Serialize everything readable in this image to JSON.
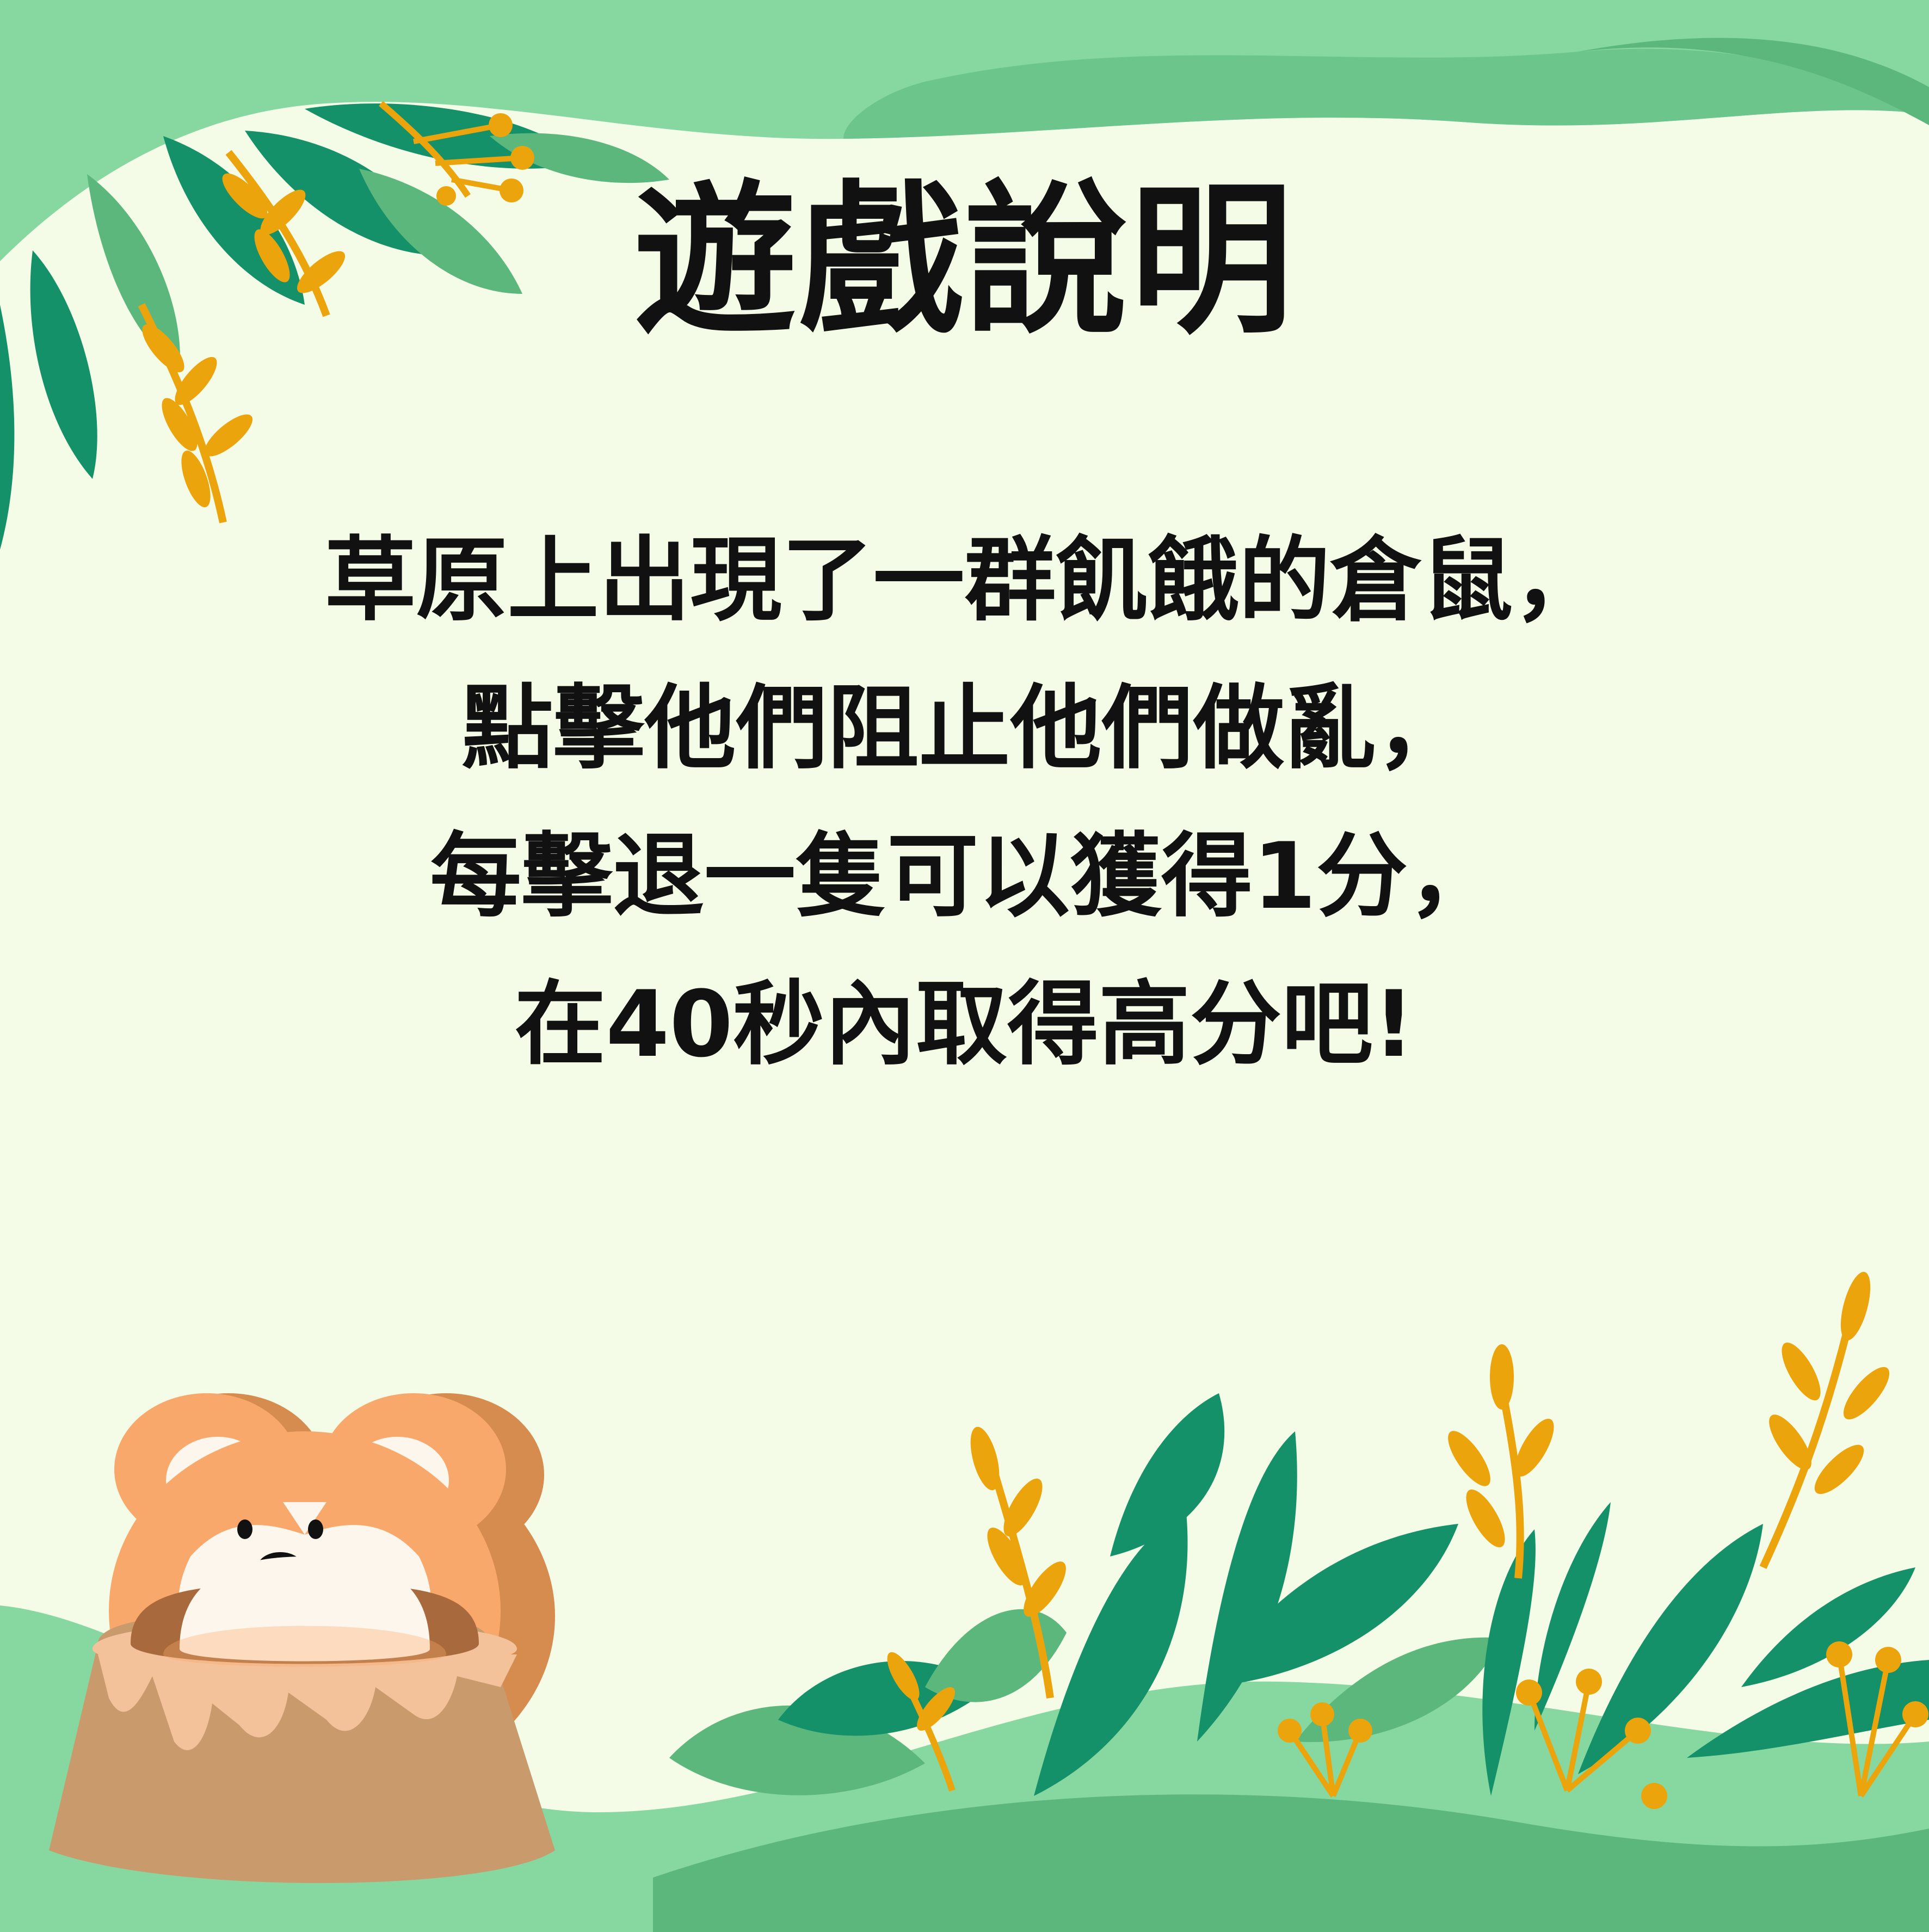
{
  "title": "遊戲說明",
  "instructions": [
    "草原上出現了一群飢餓的倉鼠，",
    "點擊他們阻止他們做亂，",
    "每擊退一隻可以獲得1分，",
    "在40秒內取得高分吧!"
  ],
  "colors": {
    "background": "#f4fbe6",
    "light_green": "#86d7a0",
    "mid_green": "#5cb77c",
    "dark_green": "#149169",
    "gold": "#eba40c",
    "hamster_orange": "#f9a86b",
    "stump_brown": "#c99b6c",
    "text": "#111111"
  },
  "icons": [
    "leaves-top-left",
    "leaves-bottom-right",
    "hamster-in-stump"
  ]
}
